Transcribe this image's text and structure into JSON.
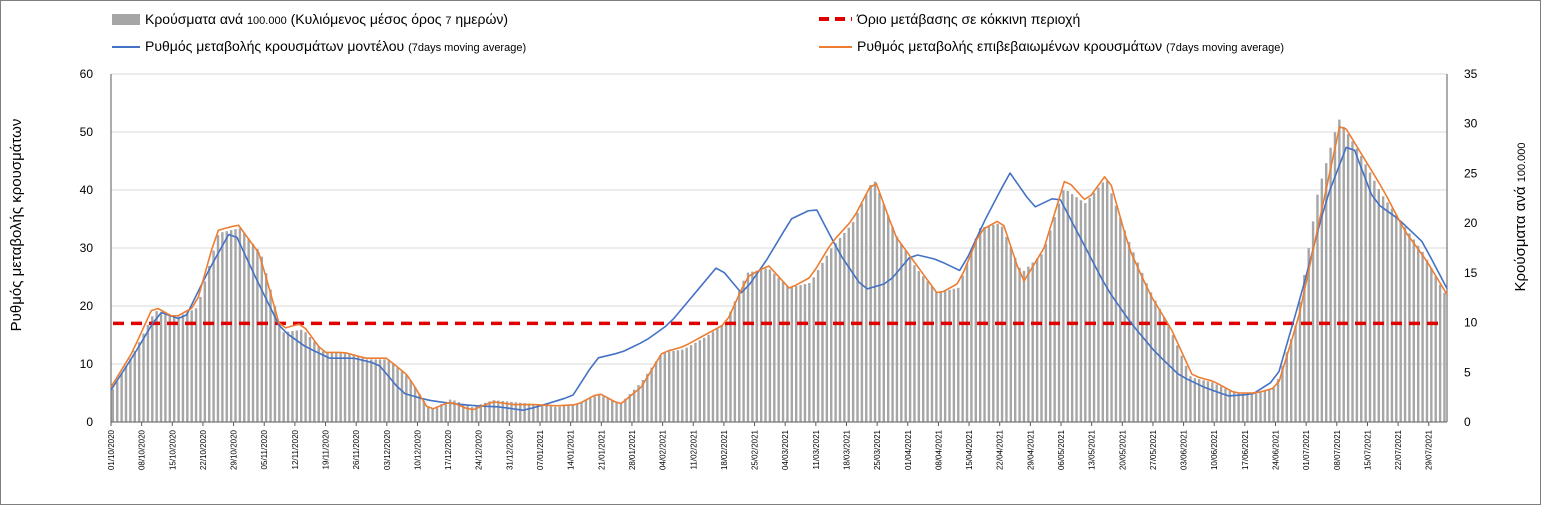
{
  "chart_data": {
    "type": "bar+line",
    "legend": {
      "bars": {
        "label_main": "Κρούσματα ανά ",
        "label_small1": "100.000",
        "label_mid": " (Κυλιόμενος μέσος όρος ",
        "label_small2": "7",
        "label_end": " ημερών)"
      },
      "model": {
        "label_main": "Ρυθμός μεταβολής κρουσμάτων μοντέλου ",
        "label_small": "(7days moving average)"
      },
      "threshold": {
        "label_main": "Όριο μετάβασης σε κόκκινη περιοχή"
      },
      "confirmed": {
        "label_main": "Ρυθμός μεταβολής επιβεβαιωμένων κρουσμάτων ",
        "label_small": "(7days moving average)"
      }
    },
    "y_left": {
      "label": "Ρυθμός μεταβολής κρουσμάτων",
      "min": 0,
      "max": 60,
      "ticks": [
        "0",
        "10",
        "20",
        "30",
        "40",
        "50",
        "60"
      ]
    },
    "y_right": {
      "label_main": "Κρούσματα ανά ",
      "label_small": "100.000",
      "min": 0,
      "max": 35,
      "ticks": [
        "0",
        "5",
        "10",
        "15",
        "20",
        "25",
        "30",
        "35"
      ]
    },
    "x_dates": [
      "01/10/2020",
      "08/10/2020",
      "15/10/2020",
      "22/10/2020",
      "29/10/2020",
      "05/11/2020",
      "12/11/2020",
      "19/11/2020",
      "26/11/2020",
      "03/12/2020",
      "10/12/2020",
      "17/12/2020",
      "24/12/2020",
      "31/12/2020",
      "07/01/2021",
      "14/01/2021",
      "21/01/2021",
      "28/01/2021",
      "04/02/2021",
      "11/02/2021",
      "18/02/2021",
      "25/02/2021",
      "04/03/2021",
      "11/03/2021",
      "18/03/2021",
      "25/03/2021",
      "01/04/2021",
      "08/04/2021",
      "15/04/2021",
      "22/04/2021",
      "29/04/2021",
      "06/05/2021",
      "13/05/2021",
      "20/05/2021",
      "27/05/2021",
      "03/06/2021",
      "10/06/2021",
      "17/06/2021",
      "24/06/2021",
      "01/07/2021",
      "08/07/2021",
      "15/07/2021",
      "22/07/2021",
      "29/07/2021"
    ],
    "threshold_value": 17,
    "model_series_weekly": [
      5.5,
      12,
      19,
      17.5,
      26,
      33.5,
      24.5,
      16,
      13,
      11,
      11,
      10,
      5,
      3.8,
      3.2,
      2.8,
      2.6,
      2.0,
      3.2,
      4.5,
      11,
      12,
      14,
      17,
      22,
      27,
      22,
      28,
      35,
      37,
      29,
      22.8,
      24,
      29,
      28,
      26,
      35,
      43,
      37,
      39,
      31,
      23,
      17,
      12,
      8,
      6,
      4.5,
      4.8,
      7.5,
      22,
      38,
      49,
      38,
      35,
      31,
      23
    ],
    "confirmed_series_weekly": [
      6,
      12,
      20,
      18,
      20,
      33,
      34,
      29,
      16,
      17,
      12,
      12,
      11,
      11,
      8,
      2,
      3.5,
      2,
      3.5,
      3,
      3,
      2.8,
      3,
      5,
      3,
      6,
      12,
      13,
      15,
      17,
      25,
      27,
      23,
      25,
      31,
      35,
      42,
      32,
      27,
      22,
      24,
      33,
      35,
      24,
      30,
      42,
      38,
      43,
      30,
      22,
      16,
      8,
      7,
      5,
      5,
      6,
      18,
      35,
      52,
      46,
      40,
      33,
      28,
      22
    ],
    "bars_weekly": [
      3.3,
      7,
      11.2,
      10.5,
      11.5,
      19,
      19.5,
      17,
      9,
      9.3,
      7,
      7,
      6.3,
      6.3,
      4.5,
      1.2,
      2.3,
      1.5,
      2.2,
      2,
      1.8,
      1.5,
      1.8,
      2.8,
      1.8,
      4,
      7,
      7.3,
      8.5,
      10,
      15,
      15.5,
      13.5,
      14,
      17.5,
      20,
      24.5,
      19,
      15.5,
      13,
      13.5,
      19.5,
      20,
      15,
      17,
      23.5,
      22,
      24.5,
      18.5,
      13.5,
      9.5,
      4.5,
      4,
      3,
      2.8,
      3.5,
      10,
      23,
      30.5,
      27,
      23,
      20,
      17,
      13
    ]
  }
}
